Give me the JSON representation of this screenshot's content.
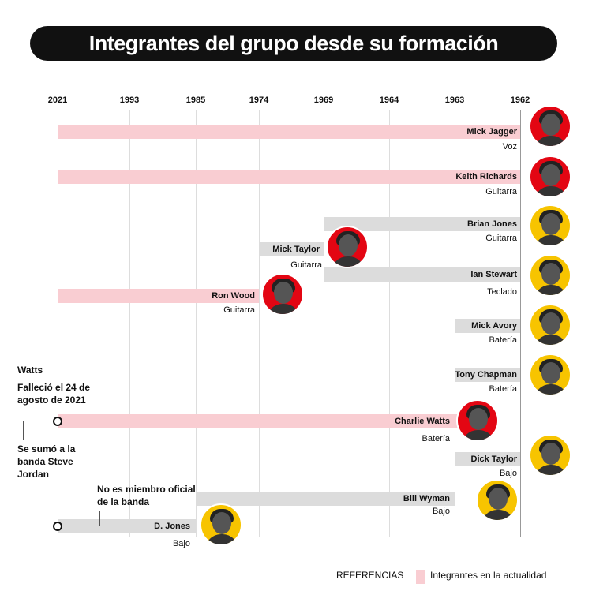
{
  "title": "Integrantes del grupo desde su formación",
  "axis": {
    "years": [
      "2021",
      "1993",
      "1985",
      "1974",
      "1969",
      "1964",
      "1963",
      "1962"
    ]
  },
  "colors": {
    "current": "#f9cdd2",
    "former": "#dcdcdc",
    "accent_red": "#e30613",
    "accent_yellow": "#f7c400"
  },
  "members": [
    {
      "name": "Mick Jagger",
      "role": "Voz",
      "current": true
    },
    {
      "name": "Keith Richards",
      "role": "Guitarra",
      "current": true
    },
    {
      "name": "Brian Jones",
      "role": "Guitarra",
      "current": false
    },
    {
      "name": "Mick Taylor",
      "role": "Guitarra",
      "current": false
    },
    {
      "name": "Ian Stewart",
      "role": "Teclado",
      "current": false
    },
    {
      "name": "Ron Wood",
      "role": "Guitarra",
      "current": true
    },
    {
      "name": "Mick Avory",
      "role": "Batería",
      "current": false
    },
    {
      "name": "Tony Chapman",
      "role": "Batería",
      "current": false
    },
    {
      "name": "Charlie Watts",
      "role": "Batería",
      "current": true
    },
    {
      "name": "Dick Taylor",
      "role": "Bajo",
      "current": false
    },
    {
      "name": "Bill Wyman",
      "role": "Bajo",
      "current": false
    },
    {
      "name": "D. Jones",
      "role": "Bajo",
      "current": false
    }
  ],
  "notes": {
    "watts_title": "Watts",
    "watts_death": "Falleció el 24 de agosto de 2021",
    "jordan": "Se sumó a la banda Steve Jordan",
    "jones": "No es miembro oficial de la banda"
  },
  "legend": {
    "title": "REFERENCIAS",
    "current": "Integrantes en la actualidad"
  }
}
